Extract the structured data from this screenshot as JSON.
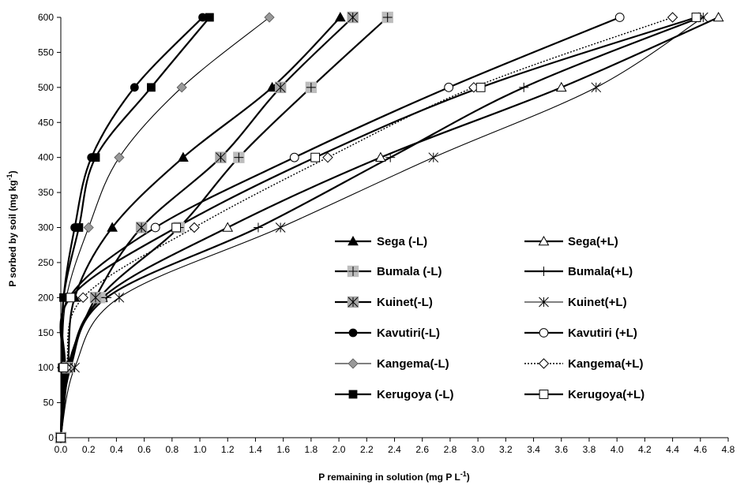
{
  "chart_data": {
    "type": "line",
    "title": "",
    "xlabel": {
      "main": "P remaining in solution (mg  P L",
      "sup": "-1",
      "tail": ")"
    },
    "ylabel": {
      "main": "P sorbed by soil (mg kg",
      "sup": "-1",
      "tail": ")"
    },
    "xlim": [
      0,
      4.8
    ],
    "ylim": [
      0,
      600
    ],
    "xticks": [
      "0.0",
      "0.2",
      "0.4",
      "0.6",
      "0.8",
      "1.0",
      "1.2",
      "1.4",
      "1.6",
      "1.8",
      "2.0",
      "2.2",
      "2.4",
      "2.6",
      "2.8",
      "3.0",
      "3.2",
      "3.4",
      "3.6",
      "3.8",
      "4.0",
      "4.2",
      "4.4",
      "4.6",
      "4.8"
    ],
    "yticks": [
      "0",
      "50",
      "100",
      "150",
      "200",
      "250",
      "300",
      "350",
      "400",
      "450",
      "500",
      "550",
      "600"
    ],
    "grid": false,
    "legend_position": "bottom-right",
    "series": [
      {
        "name": "Sega (-L)",
        "marker": "triangle-filled",
        "line": "solid-thick",
        "x": [
          0,
          0.05,
          0.1,
          0.37,
          0.88,
          1.52,
          2.01
        ],
        "y": [
          0,
          100,
          200,
          300,
          400,
          500,
          600
        ]
      },
      {
        "name": "Sega(+L)",
        "marker": "triangle-open",
        "line": "solid-thick",
        "x": [
          0,
          0.06,
          0.3,
          1.2,
          2.3,
          3.6,
          4.73
        ],
        "y": [
          0,
          100,
          200,
          300,
          400,
          500,
          600
        ]
      },
      {
        "name": "Bumala (-L)",
        "marker": "plus-gray-box",
        "line": "solid-thick",
        "x": [
          0,
          0.05,
          0.28,
          0.85,
          1.28,
          1.8,
          2.35
        ],
        "y": [
          0,
          100,
          200,
          300,
          400,
          500,
          600
        ]
      },
      {
        "name": "Bumala(+L)",
        "marker": "plus",
        "line": "solid-thick",
        "x": [
          0,
          0.07,
          0.33,
          1.42,
          2.37,
          3.33,
          4.6
        ],
        "y": [
          0,
          100,
          200,
          300,
          400,
          500,
          600
        ]
      },
      {
        "name": "Kuinet(-L)",
        "marker": "star-gray-box",
        "line": "solid-thick",
        "x": [
          0,
          0.05,
          0.25,
          0.58,
          1.15,
          1.58,
          2.1
        ],
        "y": [
          0,
          100,
          200,
          300,
          400,
          500,
          600
        ]
      },
      {
        "name": "Kuinet(+L)",
        "marker": "star",
        "line": "solid-thin",
        "x": [
          0,
          0.1,
          0.42,
          1.58,
          2.68,
          3.85,
          4.62
        ],
        "y": [
          0,
          100,
          200,
          300,
          400,
          500,
          600
        ]
      },
      {
        "name": "Kavutiri(-L)",
        "marker": "circle-filled",
        "line": "solid-thick",
        "x": [
          0,
          0.01,
          0.02,
          0.1,
          0.22,
          0.53,
          1.02
        ],
        "y": [
          0,
          100,
          200,
          300,
          400,
          500,
          600
        ]
      },
      {
        "name": "Kavutiri (+L)",
        "marker": "circle-open",
        "line": "solid-thick",
        "x": [
          0,
          0.03,
          0.06,
          0.68,
          1.68,
          2.79,
          4.02
        ],
        "y": [
          0,
          100,
          200,
          300,
          400,
          500,
          600
        ]
      },
      {
        "name": "Kangema(-L)",
        "marker": "diamond-gray",
        "line": "solid-thin",
        "x": [
          0,
          0.01,
          0.04,
          0.2,
          0.42,
          0.87,
          1.5
        ],
        "y": [
          0,
          100,
          200,
          300,
          400,
          500,
          600
        ]
      },
      {
        "name": "Kangema(+L)",
        "marker": "diamond-open",
        "line": "dotted",
        "x": [
          0,
          0.04,
          0.16,
          0.96,
          1.92,
          2.97,
          4.4
        ],
        "y": [
          0,
          100,
          200,
          300,
          400,
          500,
          600
        ]
      },
      {
        "name": "Kerugoya (-L)",
        "marker": "square-filled",
        "line": "solid-thick",
        "x": [
          0,
          0.01,
          0.02,
          0.13,
          0.25,
          0.65,
          1.07
        ],
        "y": [
          0,
          100,
          200,
          300,
          400,
          500,
          600
        ]
      },
      {
        "name": "Kerugoya(+L)",
        "marker": "square-open",
        "line": "solid-thick",
        "x": [
          0,
          0.02,
          0.07,
          0.83,
          1.83,
          3.02,
          4.57
        ],
        "y": [
          0,
          100,
          200,
          300,
          400,
          500,
          600
        ]
      }
    ]
  }
}
